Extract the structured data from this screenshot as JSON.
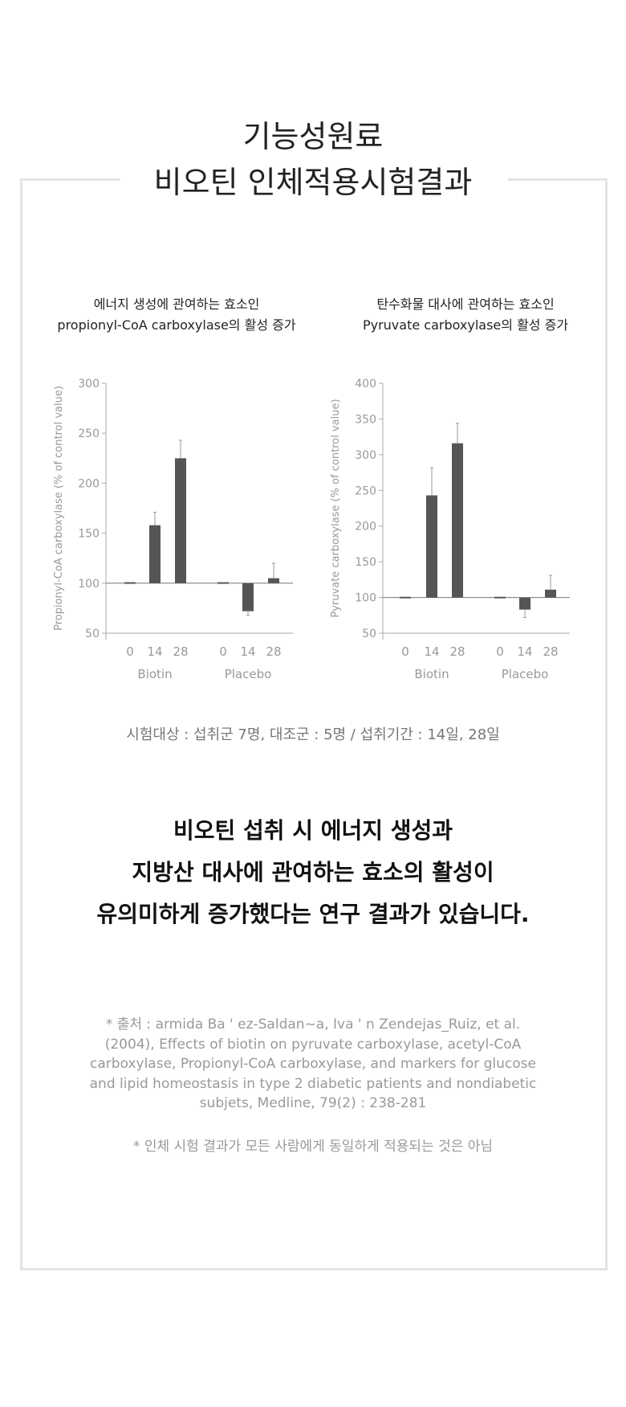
{
  "header": {
    "title_line1": "기능성원료",
    "title_line2": "비오틴 인체적용시험결과"
  },
  "charts_captions": [
    {
      "line1": "에너지 생성에 관여하는 효소인",
      "line2": "propionyl-CoA carboxylase의 활성 증가"
    },
    {
      "line1": "탄수화물 대사에 관여하는 효소인",
      "line2": "Pyruvate carboxylase의 활성 증가"
    }
  ],
  "chart_data": [
    {
      "type": "bar",
      "ylabel": "Propionyl-CoA carboxylase (% of control value)",
      "ylim": [
        50,
        300
      ],
      "yticks": [
        50,
        100,
        150,
        200,
        250,
        300
      ],
      "baseline": 100,
      "groups": [
        "Biotin",
        "Placebo"
      ],
      "categories": [
        "0",
        "14",
        "28"
      ],
      "series": [
        {
          "group": "Biotin",
          "values": [
            101,
            158,
            225
          ],
          "error_ends": [
            null,
            171,
            243
          ]
        },
        {
          "group": "Placebo",
          "values": [
            101,
            72,
            105
          ],
          "error_ends": [
            null,
            68,
            120
          ]
        }
      ],
      "bar_color": "#555555"
    },
    {
      "type": "bar",
      "ylabel": "Pyruvate carboxylase (% of control value)",
      "ylim": [
        50,
        400
      ],
      "yticks": [
        50,
        100,
        150,
        200,
        250,
        300,
        350,
        400
      ],
      "baseline": 100,
      "groups": [
        "Biotin",
        "Placebo"
      ],
      "categories": [
        "0",
        "14",
        "28"
      ],
      "series": [
        {
          "group": "Biotin",
          "values": [
            101,
            243,
            316
          ],
          "error_ends": [
            null,
            282,
            344
          ]
        },
        {
          "group": "Placebo",
          "values": [
            101,
            83,
            111
          ],
          "error_ends": [
            null,
            72,
            131
          ]
        }
      ],
      "bar_color": "#555555"
    }
  ],
  "trial_info": "시험대상 : 섭취군 7명, 대조군 : 5명 / 섭취기간 : 14일, 28일",
  "main_text": [
    "비오틴 섭취 시 에너지 생성과",
    "지방산 대사에 관여하는 효소의 활성이",
    "유의미하게 증가했다는 연구 결과가 있습니다."
  ],
  "reference": [
    "* 출처 : armida Ba ' ez-Saldan~a, Iva ' n Zendejas_Ruiz, et al.",
    "(2004), Effects of biotin on pyruvate carboxylase, acetyl-CoA",
    "carboxylase, Propionyl-CoA carboxylase, and markers for glucose",
    "and lipid homeostasis in type 2 diabetic patients and nondiabetic",
    "subjets, Medline, 79(2) : 238-281"
  ],
  "disclaimer": "* 인체 시험 결과가 모든 사람에게 동일하게 적용되는 것은 아님"
}
